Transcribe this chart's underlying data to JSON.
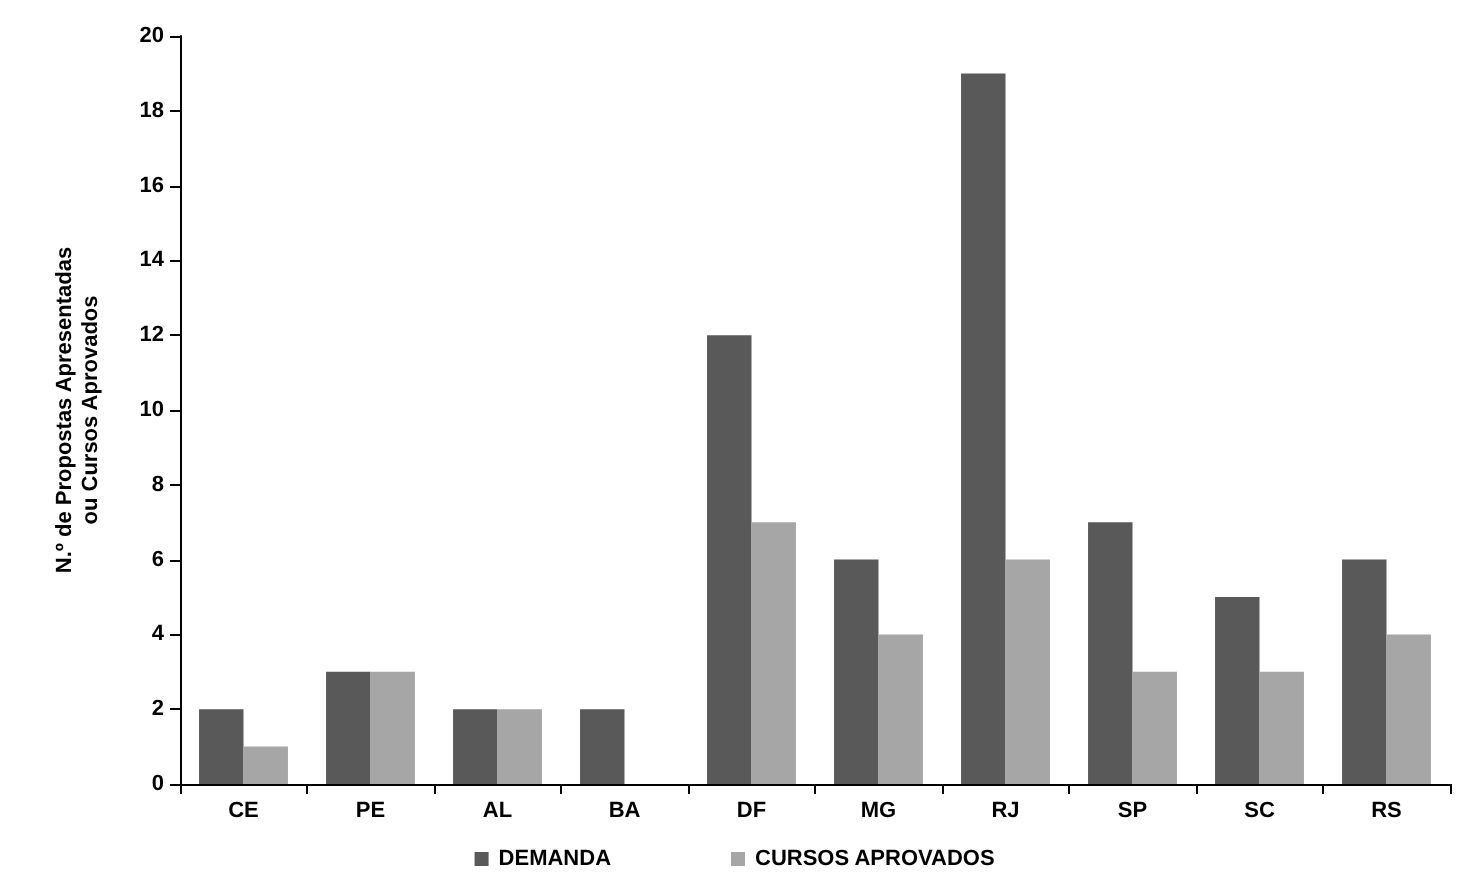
{
  "chart_data": {
    "type": "bar",
    "ylabel": "N.º de Propostas Apresentadas\nou Cursos Aprovados",
    "categories": [
      "CE",
      "PE",
      "AL",
      "BA",
      "DF",
      "MG",
      "RJ",
      "SP",
      "SC",
      "RS"
    ],
    "series": [
      {
        "name": "DEMANDA",
        "color": "#595959",
        "values": [
          2,
          3,
          2,
          2,
          12,
          6,
          19,
          7,
          5,
          6
        ]
      },
      {
        "name": "CURSOS APROVADOS",
        "color": "#a6a6a6",
        "values": [
          1,
          3,
          2,
          0,
          7,
          4,
          6,
          3,
          3,
          4
        ]
      }
    ],
    "ylim": [
      0,
      20
    ],
    "yticks": [
      0,
      2,
      4,
      6,
      8,
      10,
      12,
      14,
      16,
      18,
      20
    ],
    "grid": false,
    "legend": "bottom"
  }
}
